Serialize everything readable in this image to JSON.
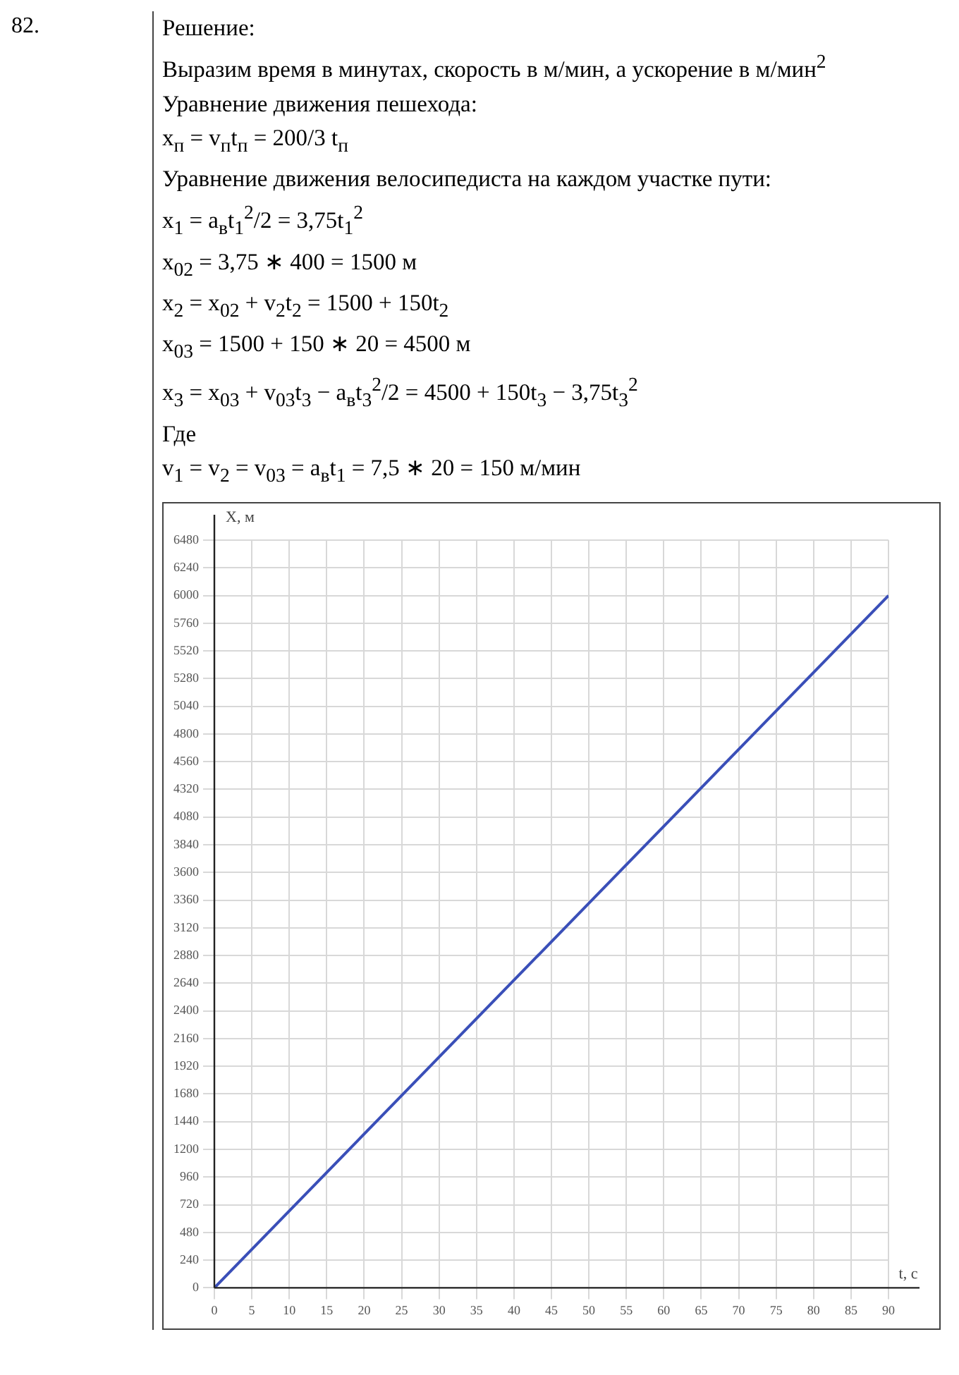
{
  "chart_data": {
    "type": "line",
    "annotations": [
      "82.",
      "Решение:",
      "Выразим время в минутах, скорость в м/мин, а ускорение в м/мин$^{2}$",
      "Уравнение движения пешехода:",
      "x$_{п}$ = v$_{п}$t$_{п}$ = 200/3 t$_{п}$",
      "Уравнение движения велосипедиста на каждом участке пути:",
      "x$_{1}$ = a$_{в}$t$_{1}$$^{2}$/2 = 3,75t$_{1}$$^{2}$",
      "x$_{02}$ = 3,75 ∗ 400 = 1500 м",
      "x$_{2}$ = x$_{02}$ + v$_{2}$t$_{2}$ = 1500 + 150t$_{2}$",
      "x$_{03}$ = 1500 + 150 ∗ 20 = 4500 м",
      "x$_{3}$ = x$_{03}$ + v$_{03}$t$_{3}$ − a$_{в}$t$_{3}$$^{2}$/2 = 4500 + 150t$_{3}$ − 3,75t$_{3}$$^{2}$",
      "Где",
      "v$_{1}$ = v$_{2}$ = v$_{03}$ = a$_{в}$t$_{1}$ = 7,5 ∗ 20 = 150 м/мин"
    ],
    "xlabel": "t, с",
    "ylabel": "X, м",
    "x": [
      0,
      90
    ],
    "values": [
      0,
      6000
    ],
    "color": "#3a4fb8",
    "marker": "none",
    "xlim": [
      0,
      90
    ],
    "xticks": [
      0,
      5,
      10,
      15,
      20,
      25,
      30,
      35,
      40,
      45,
      50,
      55,
      60,
      65,
      70,
      75,
      80,
      85,
      90
    ],
    "ylim": [
      0,
      6480
    ],
    "yticks": [
      0,
      240,
      480,
      720,
      960,
      1200,
      1440,
      1680,
      1920,
      2160,
      2400,
      2640,
      2880,
      3120,
      3360,
      3600,
      3840,
      4080,
      4320,
      4560,
      4800,
      5040,
      5280,
      5520,
      5760,
      6000,
      6240,
      6480
    ],
    "grid": true
  }
}
